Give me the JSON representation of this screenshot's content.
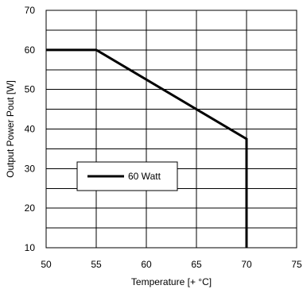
{
  "chart_data": {
    "type": "line",
    "xlabel": "Temperature [+ °C]",
    "ylabel": "Output Power Pout [W]",
    "xlim": [
      50,
      75
    ],
    "ylim": [
      10,
      70
    ],
    "x_ticks": [
      50,
      55,
      60,
      65,
      70,
      75
    ],
    "y_ticks": [
      10,
      20,
      30,
      40,
      50,
      60,
      70
    ],
    "x_tick_labels": [
      "50",
      "55",
      "60",
      "65",
      "70",
      "75"
    ],
    "y_tick_labels": [
      "10",
      "20",
      "30",
      "40",
      "50",
      "60",
      "70"
    ],
    "y_minor_step": 5,
    "grid": true,
    "legend": {
      "placement": "left-middle",
      "entries": [
        "60 Watt"
      ]
    },
    "series": [
      {
        "name": "60 Watt",
        "color": "#000000",
        "points": [
          {
            "x": 50,
            "y": 60
          },
          {
            "x": 55,
            "y": 60
          },
          {
            "x": 70,
            "y": 37.5
          },
          {
            "x": 70,
            "y": 10
          }
        ]
      }
    ]
  }
}
